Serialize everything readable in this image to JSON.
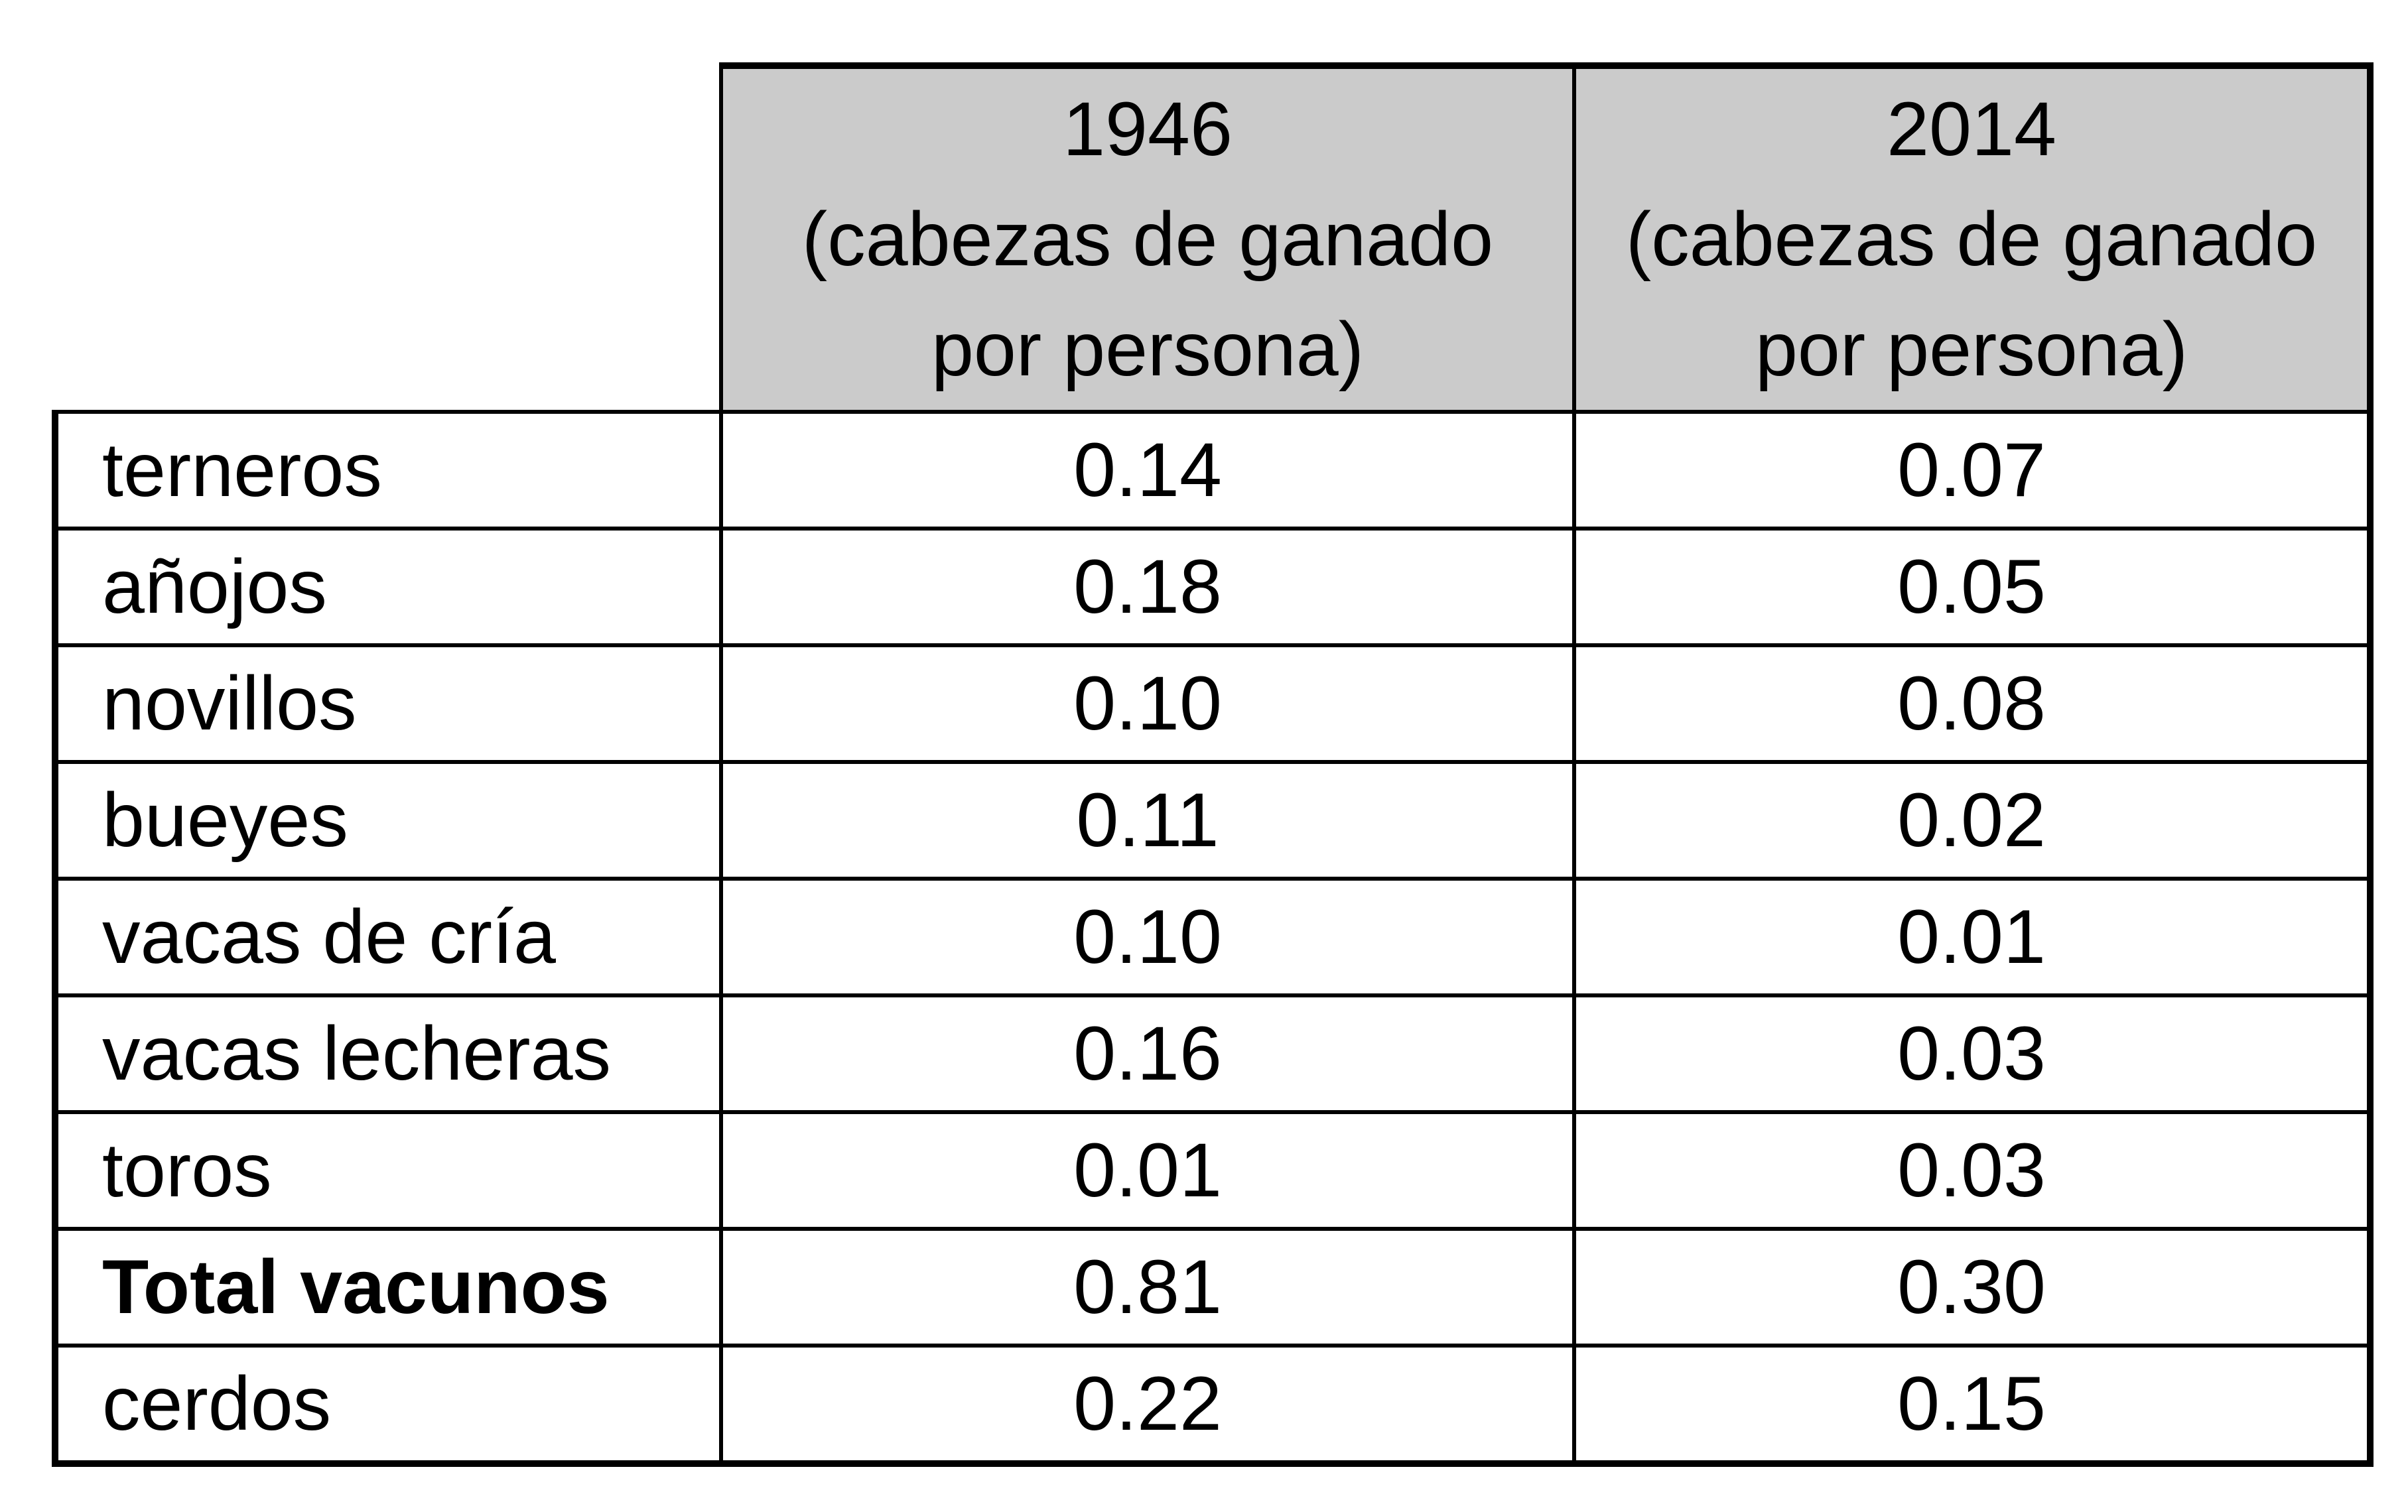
{
  "table": {
    "header": {
      "empty_cell": "",
      "columns": [
        {
          "year": "1946",
          "subtitle_line1": "(cabezas de ganado",
          "subtitle_line2": "por persona)"
        },
        {
          "year": "2014",
          "subtitle_line1": "(cabezas de ganado",
          "subtitle_line2": "por persona)"
        }
      ]
    },
    "rows": [
      {
        "label": "terneros",
        "y1946": "0.14",
        "y2014": "0.07"
      },
      {
        "label": "añojos",
        "y1946": "0.18",
        "y2014": "0.05"
      },
      {
        "label": "novillos",
        "y1946": "0.10",
        "y2014": "0.08"
      },
      {
        "label": "bueyes",
        "y1946": "0.11",
        "y2014": "0.02"
      },
      {
        "label": "vacas de cría",
        "y1946": "0.10",
        "y2014": "0.01"
      },
      {
        "label": "vacas lecheras",
        "y1946": "0.16",
        "y2014": "0.03"
      },
      {
        "label": "toros",
        "y1946": "0.01",
        "y2014": "0.03"
      },
      {
        "label": "Total vacunos",
        "y1946": "0.81",
        "y2014": "0.30",
        "is_total": true
      },
      {
        "label": "cerdos",
        "y1946": "0.22",
        "y2014": "0.15"
      }
    ],
    "style": {
      "header_bg": "#CBCBCB",
      "border_color": "#000000",
      "text_color": "#000000",
      "page_bg": "#FFFFFF"
    }
  },
  "chart_data": {
    "type": "table",
    "title": "",
    "categories": [
      "terneros",
      "añojos",
      "novillos",
      "bueyes",
      "vacas de cría",
      "vacas lecheras",
      "toros",
      "Total vacunos",
      "cerdos"
    ],
    "series": [
      {
        "name": "1946 (cabezas de ganado por persona)",
        "values": [
          0.14,
          0.18,
          0.1,
          0.11,
          0.1,
          0.16,
          0.01,
          0.81,
          0.22
        ]
      },
      {
        "name": "2014 (cabezas de ganado por persona)",
        "values": [
          0.07,
          0.05,
          0.08,
          0.02,
          0.01,
          0.03,
          0.03,
          0.3,
          0.15
        ]
      }
    ],
    "total_row": "Total vacunos",
    "layout": {
      "grid": true,
      "header_shaded": true
    }
  }
}
